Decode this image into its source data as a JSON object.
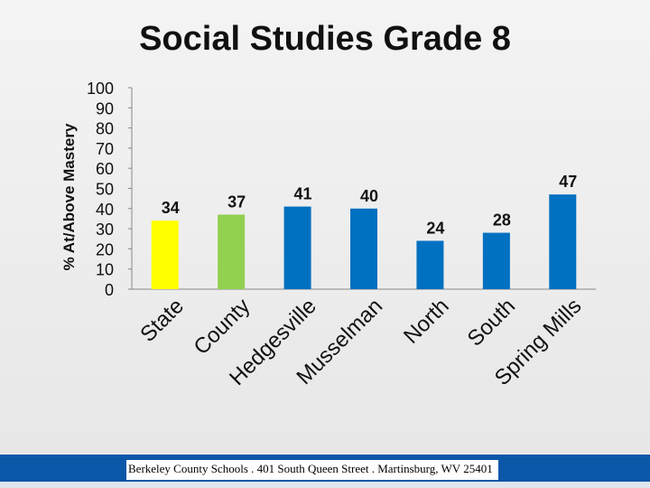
{
  "slide": {
    "footer_text": "Berkeley County Schools . 401 South Queen Street . Martinsburg, WV  25401"
  },
  "colors": {
    "state": "#ffff00",
    "county": "#92d050",
    "school": "#0070c0"
  },
  "chart_data": {
    "type": "bar",
    "title": "Social Studies Grade 8",
    "xlabel": "",
    "ylabel": "% At/Above Mastery",
    "ylim": [
      0,
      100
    ],
    "yticks": [
      0,
      10,
      20,
      30,
      40,
      50,
      60,
      70,
      80,
      90,
      100
    ],
    "categories": [
      "State",
      "County",
      "Hedgesville",
      "Musselman",
      "North",
      "South",
      "Spring Mills"
    ],
    "values": [
      34,
      37,
      41,
      40,
      24,
      28,
      47
    ],
    "bar_colors": [
      "#ffff00",
      "#92d050",
      "#0070c0",
      "#0070c0",
      "#0070c0",
      "#0070c0",
      "#0070c0"
    ],
    "data_labels": [
      "34",
      "37",
      "41",
      "40",
      "24",
      "28",
      "47"
    ],
    "grid": false,
    "legend": "none"
  }
}
